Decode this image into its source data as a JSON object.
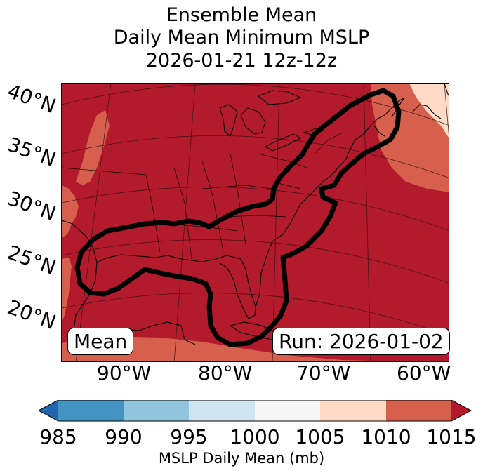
{
  "title": {
    "line1": "Ensemble Mean",
    "line2": "Daily Mean Minimum MSLP",
    "line3": "2026-01-21 12z-12z"
  },
  "map": {
    "lat_labels": [
      "40°N",
      "35°N",
      "30°N",
      "25°N",
      "20°N"
    ],
    "lon_labels": [
      "90°W",
      "80°W",
      "70°W",
      "60°W"
    ],
    "mean_label": "Mean",
    "run_label": "Run: 2026-01-02",
    "contour_color": "#000000"
  },
  "colorbar": {
    "label": "MSLP Daily Mean (mb)",
    "ticks": [
      "985",
      "990",
      "995",
      "1000",
      "1005",
      "1010",
      "1015"
    ],
    "colors": [
      "#2166ac",
      "#4393c3",
      "#92c5de",
      "#d1e5f0",
      "#f7f7f7",
      "#fddbc7",
      "#d6604d",
      "#b2182b"
    ]
  }
}
